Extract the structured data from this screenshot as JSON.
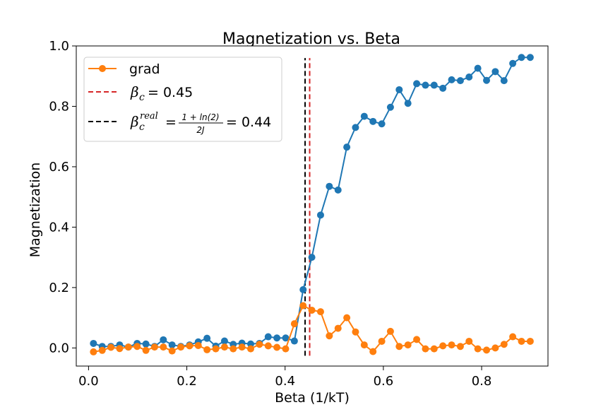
{
  "chart_data": {
    "type": "line",
    "title": "Magnetization vs. Beta",
    "xlabel": "Beta (1/kT)",
    "ylabel": "Magnetization",
    "xlim": [
      -0.025,
      0.935
    ],
    "ylim": [
      -0.06,
      1.0
    ],
    "xticks": [
      0.0,
      0.2,
      0.4,
      0.6,
      0.8
    ],
    "xtick_labels": [
      "0.0",
      "0.2",
      "0.4",
      "0.6",
      "0.8"
    ],
    "yticks": [
      0.0,
      0.2,
      0.4,
      0.6,
      0.8,
      1.0
    ],
    "ytick_labels": [
      "0.0",
      "0.2",
      "0.4",
      "0.6",
      "0.8",
      "1.0"
    ],
    "grid": false,
    "legend_position": "top-left",
    "x": [
      0.01,
      0.0278,
      0.0455,
      0.0633,
      0.0811,
      0.0989,
      0.1167,
      0.1344,
      0.1522,
      0.17,
      0.1878,
      0.2056,
      0.2233,
      0.2411,
      0.2589,
      0.2767,
      0.2944,
      0.3122,
      0.33,
      0.3478,
      0.3656,
      0.3833,
      0.4011,
      0.4189,
      0.4367,
      0.4544,
      0.4722,
      0.49,
      0.5078,
      0.5256,
      0.5433,
      0.5611,
      0.5789,
      0.5967,
      0.6144,
      0.6322,
      0.65,
      0.6678,
      0.6856,
      0.7033,
      0.7211,
      0.7389,
      0.7567,
      0.7744,
      0.7922,
      0.81,
      0.8278,
      0.8456,
      0.8633,
      0.8811,
      0.8989
    ],
    "series": [
      {
        "name": "",
        "color": "#1f77b4",
        "values": [
          0.015,
          0.005,
          0.005,
          0.01,
          0.003,
          0.015,
          0.013,
          0.005,
          0.027,
          0.01,
          0.005,
          0.01,
          0.02,
          0.032,
          0.006,
          0.023,
          0.012,
          0.016,
          0.013,
          0.015,
          0.037,
          0.033,
          0.033,
          0.023,
          0.193,
          0.3,
          0.44,
          0.535,
          0.523,
          0.665,
          0.73,
          0.767,
          0.75,
          0.742,
          0.797,
          0.855,
          0.81,
          0.875,
          0.87,
          0.87,
          0.86,
          0.888,
          0.885,
          0.897,
          0.926,
          0.886,
          0.915,
          0.885,
          0.942,
          0.962,
          0.962
        ]
      },
      {
        "name": "grad",
        "color": "#ff7f0e",
        "values": [
          -0.013,
          -0.008,
          0.002,
          -0.002,
          0.003,
          0.005,
          -0.008,
          0.003,
          0.003,
          -0.01,
          0.003,
          0.007,
          0.008,
          -0.006,
          -0.003,
          0.003,
          -0.003,
          0.003,
          -0.003,
          0.012,
          0.007,
          0.002,
          -0.003,
          0.08,
          0.14,
          0.125,
          0.12,
          0.04,
          0.065,
          0.1,
          0.053,
          0.01,
          -0.012,
          0.022,
          0.055,
          0.005,
          0.01,
          0.028,
          -0.003,
          -0.003,
          0.007,
          0.01,
          0.005,
          0.022,
          -0.003,
          -0.007,
          0.0,
          0.012,
          0.037,
          0.022,
          0.022
        ]
      }
    ],
    "vlines": [
      {
        "name": "beta_c",
        "x": 0.45,
        "color": "#d62728",
        "ymin": 0.0,
        "ymax": 0.96
      },
      {
        "name": "beta_c_real",
        "x": 0.4407,
        "color": "#000000",
        "ymin": 0.0,
        "ymax": 0.96
      }
    ],
    "legend": {
      "grad": "grad",
      "beta_c_symbol": "β",
      "beta_c_sub": "c",
      "beta_c_value": "= 0.45",
      "real_symbol": "β",
      "real_sub": "c",
      "real_sup": "real",
      "real_eq": "=",
      "real_num": "1 + ln(2)",
      "real_den": "2J",
      "real_value": "= 0.44"
    }
  }
}
